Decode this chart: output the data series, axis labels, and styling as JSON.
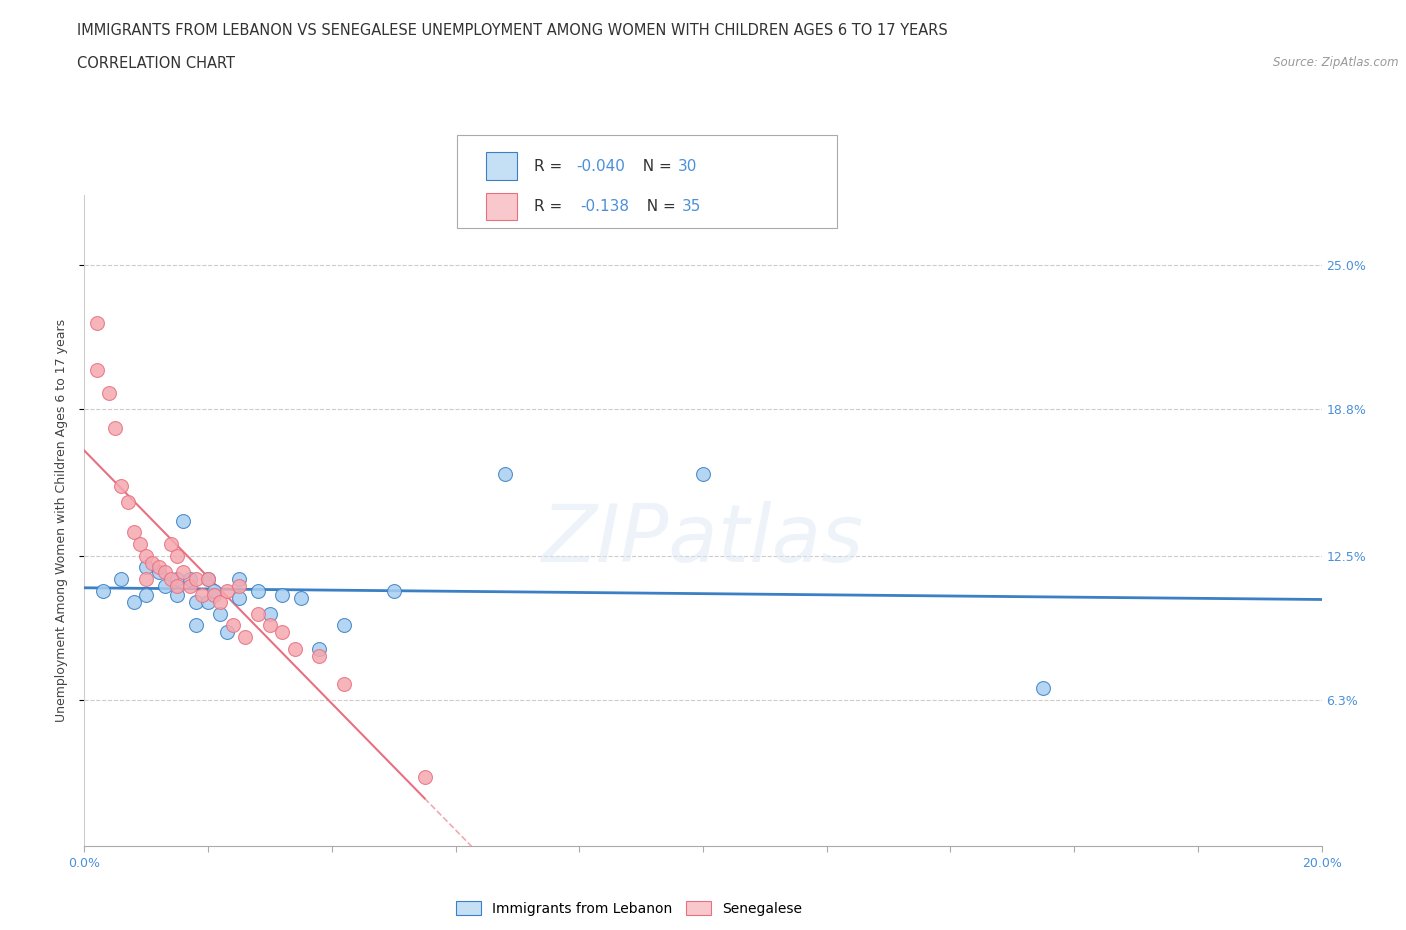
{
  "title_line1": "IMMIGRANTS FROM LEBANON VS SENEGALESE UNEMPLOYMENT AMONG WOMEN WITH CHILDREN AGES 6 TO 17 YEARS",
  "title_line2": "CORRELATION CHART",
  "source_text": "Source: ZipAtlas.com",
  "ylabel": "Unemployment Among Women with Children Ages 6 to 17 years",
  "xlim": [
    0.0,
    0.2
  ],
  "ylim": [
    0.0,
    0.28
  ],
  "ytick_positions": [
    0.063,
    0.125,
    0.188,
    0.25
  ],
  "ytick_labels": [
    "6.3%",
    "12.5%",
    "18.8%",
    "25.0%"
  ],
  "watermark": "ZIPatlas",
  "lebanon_color": "#A8CFF0",
  "senegal_color": "#F4A8B0",
  "lebanon_line_color": "#3B7FC4",
  "senegal_line_color": "#E87080",
  "legend_box_color_lebanon": "#C5DFF5",
  "legend_box_color_senegal": "#F9C8CC",
  "r_lebanon": "-0.040",
  "n_lebanon": "30",
  "r_senegal": "-0.138",
  "n_senegal": "35",
  "lebanon_x": [
    0.003,
    0.006,
    0.008,
    0.01,
    0.01,
    0.012,
    0.013,
    0.015,
    0.015,
    0.016,
    0.017,
    0.018,
    0.018,
    0.02,
    0.02,
    0.021,
    0.022,
    0.023,
    0.025,
    0.025,
    0.028,
    0.03,
    0.032,
    0.035,
    0.038,
    0.042,
    0.05,
    0.068,
    0.1,
    0.155
  ],
  "lebanon_y": [
    0.11,
    0.115,
    0.105,
    0.12,
    0.108,
    0.118,
    0.112,
    0.115,
    0.108,
    0.14,
    0.115,
    0.105,
    0.095,
    0.115,
    0.105,
    0.11,
    0.1,
    0.092,
    0.115,
    0.107,
    0.11,
    0.1,
    0.108,
    0.107,
    0.085,
    0.095,
    0.11,
    0.16,
    0.16,
    0.068
  ],
  "senegal_x": [
    0.002,
    0.002,
    0.004,
    0.005,
    0.006,
    0.007,
    0.008,
    0.009,
    0.01,
    0.01,
    0.011,
    0.012,
    0.013,
    0.014,
    0.014,
    0.015,
    0.015,
    0.016,
    0.017,
    0.018,
    0.019,
    0.02,
    0.021,
    0.022,
    0.023,
    0.024,
    0.025,
    0.026,
    0.028,
    0.03,
    0.032,
    0.034,
    0.038,
    0.042,
    0.055
  ],
  "senegal_y": [
    0.225,
    0.205,
    0.195,
    0.18,
    0.155,
    0.148,
    0.135,
    0.13,
    0.125,
    0.115,
    0.122,
    0.12,
    0.118,
    0.13,
    0.115,
    0.125,
    0.112,
    0.118,
    0.112,
    0.115,
    0.108,
    0.115,
    0.108,
    0.105,
    0.11,
    0.095,
    0.112,
    0.09,
    0.1,
    0.095,
    0.092,
    0.085,
    0.082,
    0.07,
    0.03
  ],
  "grid_color": "#CCCCCC",
  "background_color": "#FFFFFF",
  "title_fontsize": 11,
  "axis_label_fontsize": 9,
  "tick_label_color": "#4A90D9",
  "legend_fontsize": 11
}
